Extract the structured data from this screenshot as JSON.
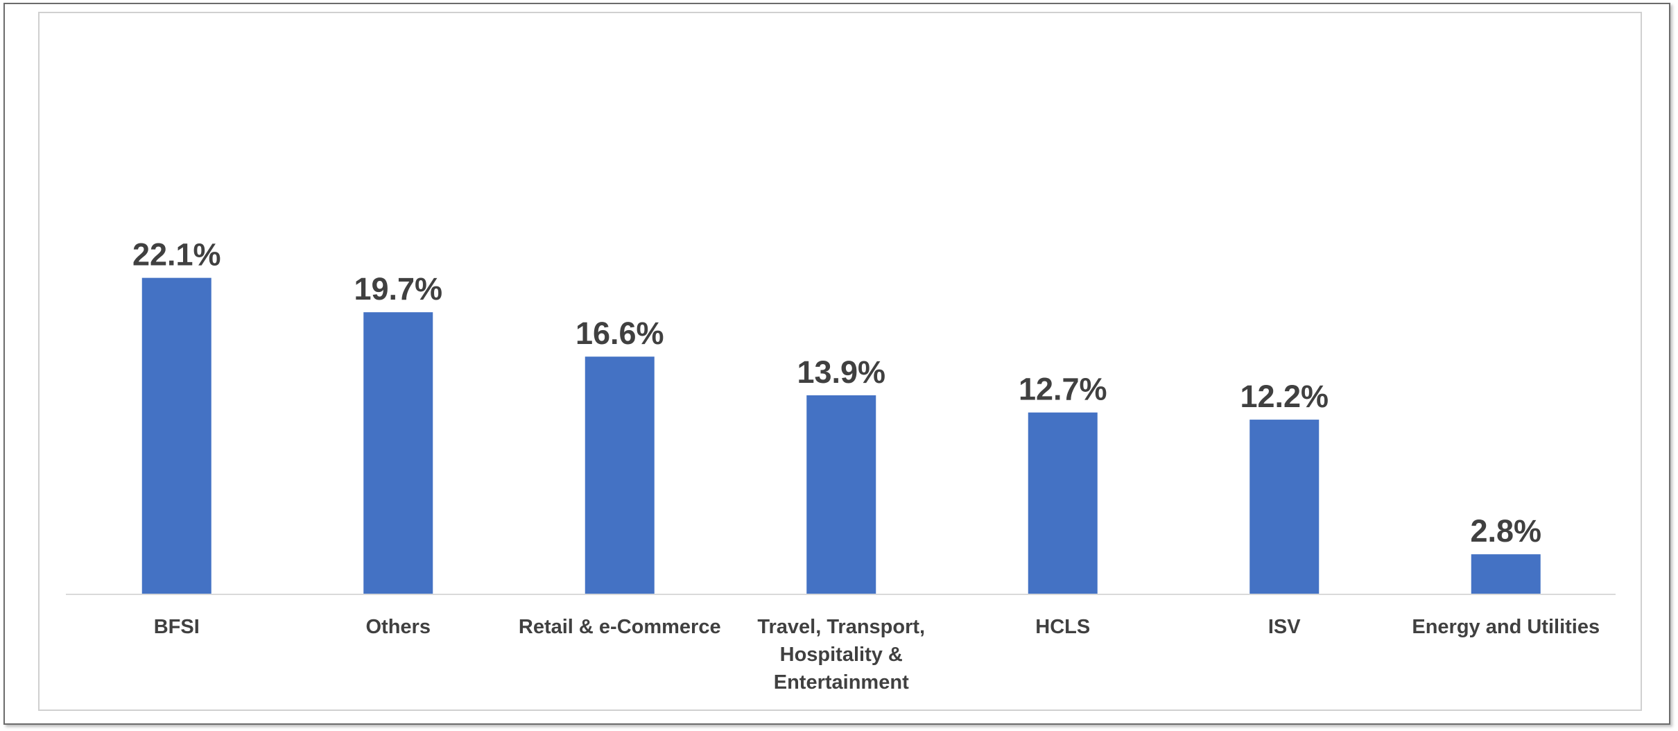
{
  "chart_data": {
    "type": "bar",
    "categories": [
      "BFSI",
      "Others",
      "Retail & e-Commerce",
      "Travel, Transport, Hospitality & Entertainment",
      "HCLS",
      "ISV",
      "Energy and Utilities"
    ],
    "category_lines": [
      [
        "BFSI"
      ],
      [
        "Others"
      ],
      [
        "Retail & e-Commerce"
      ],
      [
        "Travel, Transport,",
        "Hospitality &",
        "Entertainment"
      ],
      [
        "HCLS"
      ],
      [
        "ISV"
      ],
      [
        "Energy and Utilities"
      ]
    ],
    "values": [
      22.1,
      19.7,
      16.6,
      13.9,
      12.7,
      12.2,
      2.8
    ],
    "value_labels": [
      "22.1%",
      "19.7%",
      "16.6%",
      "13.9%",
      "12.7%",
      "12.2%",
      "2.8%"
    ],
    "unit": "%",
    "title": "",
    "xlabel": "",
    "ylabel": "",
    "ylim": [
      0,
      27
    ],
    "grid": false,
    "legend": "none",
    "colors": {
      "bar": "#4472C4",
      "axis": "#d9d9d9",
      "label": "#404040"
    }
  }
}
